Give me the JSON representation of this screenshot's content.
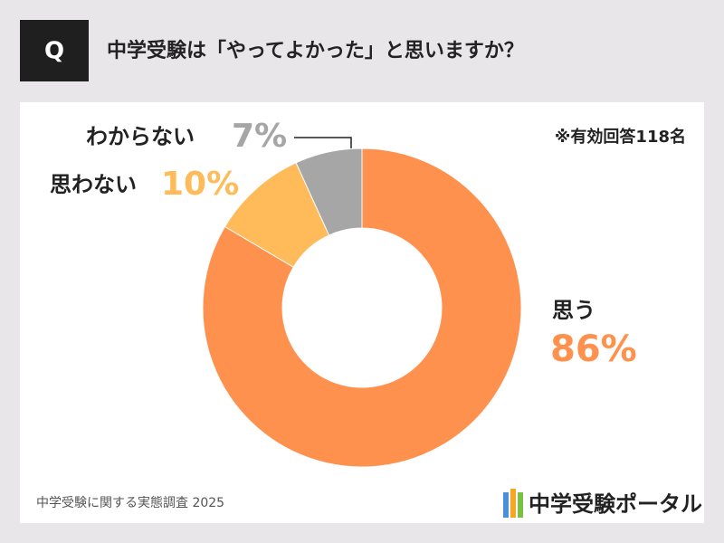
{
  "badge": "Q",
  "note": "※有効回答118名",
  "source": "中学受験に関する実態調査 2025",
  "logo": "中学受験ポータル",
  "chart_data": {
    "type": "donut",
    "title": "中学受験は「やってよかった」と思いますか？",
    "categories": [
      "思う",
      "思わない",
      "わからない"
    ],
    "values": [
      86,
      10,
      7
    ],
    "value_labels": [
      "86%",
      "10%",
      "7%"
    ],
    "colors": [
      "#fe914d",
      "#ffbb5a",
      "#a6a6a6"
    ]
  }
}
